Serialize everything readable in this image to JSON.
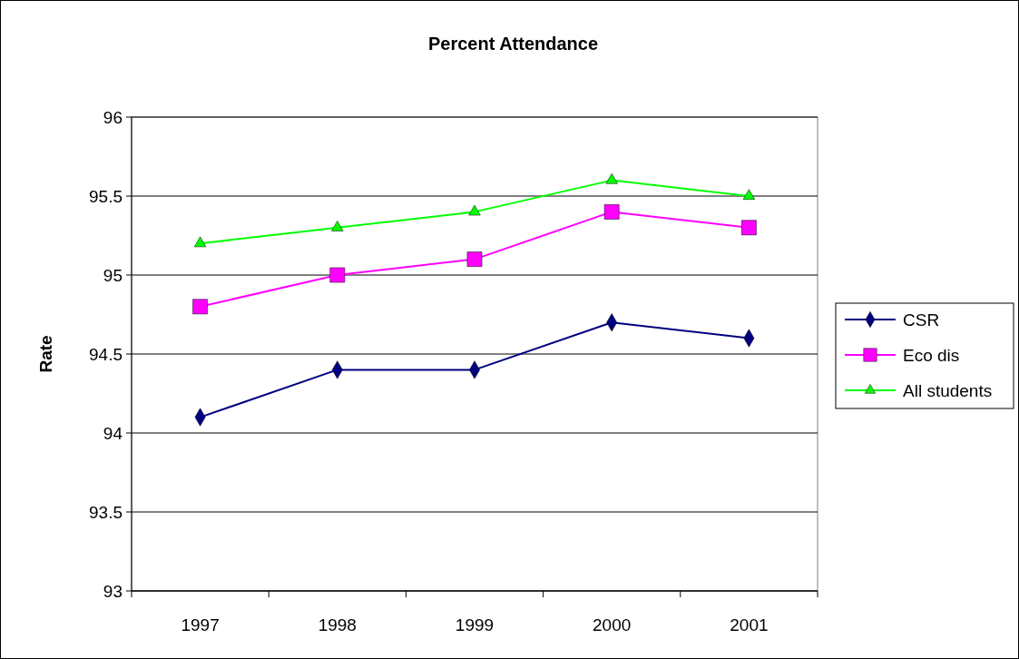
{
  "chart_data": {
    "type": "line",
    "title": "Percent Attendance",
    "ylabel": "Rate",
    "categories": [
      "1997",
      "1998",
      "1999",
      "2000",
      "2001"
    ],
    "series": [
      {
        "name": "CSR",
        "color": "#000080",
        "marker": "diamond",
        "values": [
          94.1,
          94.4,
          94.4,
          94.7,
          94.6
        ]
      },
      {
        "name": "Eco dis",
        "color": "#ff00ff",
        "marker": "square",
        "values": [
          94.8,
          95.0,
          95.1,
          95.4,
          95.3
        ]
      },
      {
        "name": "All students",
        "color": "#00ff00",
        "marker": "triangle",
        "values": [
          95.2,
          95.3,
          95.4,
          95.6,
          95.5
        ]
      }
    ],
    "ylim": [
      93,
      96
    ],
    "yticks": [
      93,
      93.5,
      94,
      94.5,
      95,
      95.5,
      96
    ],
    "grid": "y",
    "legend": "right",
    "line_style": "solid"
  }
}
